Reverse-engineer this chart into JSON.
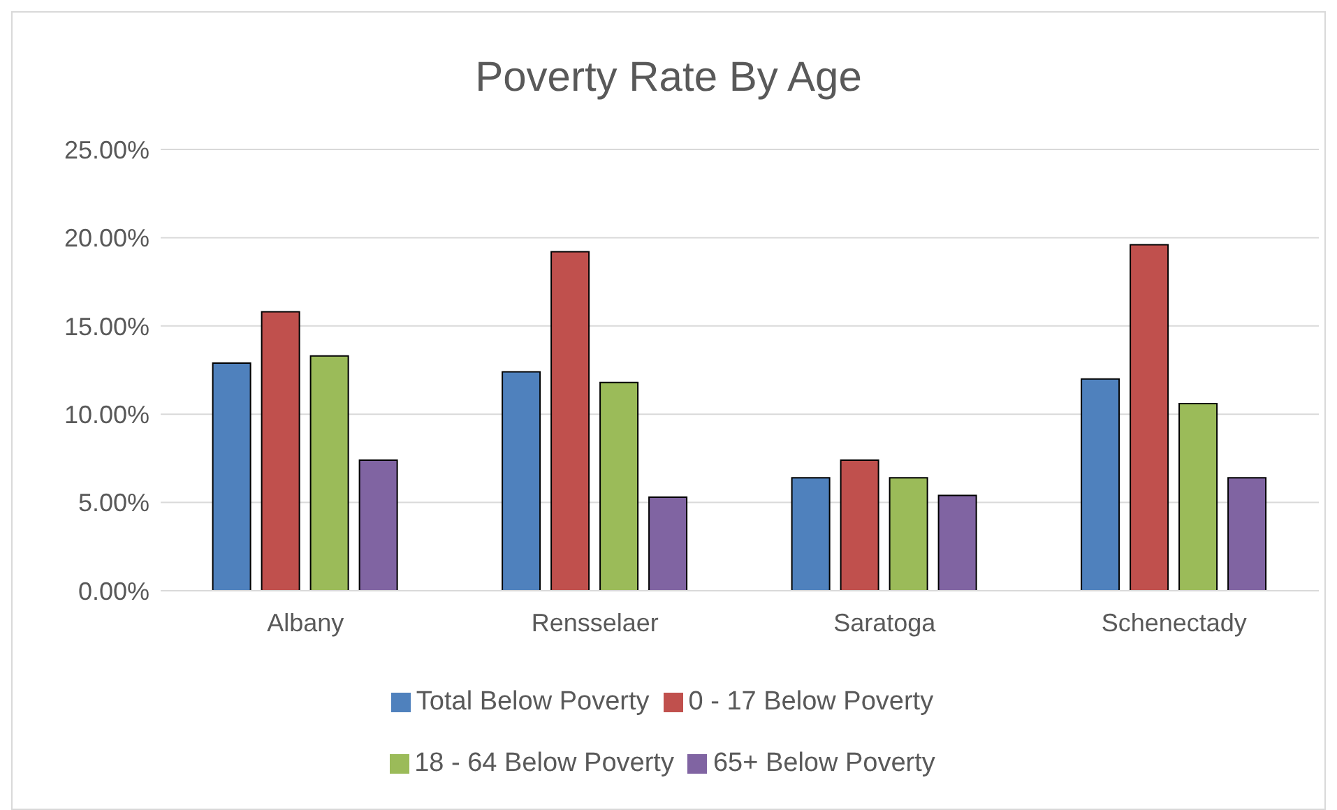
{
  "chart_data": {
    "type": "bar",
    "title": "Poverty Rate By Age",
    "categories": [
      "Albany",
      "Rensselaer",
      "Saratoga",
      "Schenectady"
    ],
    "series": [
      {
        "name": "Total Below Poverty",
        "color": "#4f81bd",
        "values": [
          12.9,
          12.4,
          6.4,
          12.0
        ]
      },
      {
        "name": "0 - 17 Below Poverty",
        "color": "#c0504d",
        "values": [
          15.8,
          19.2,
          7.4,
          19.6
        ]
      },
      {
        "name": "18 - 64 Below Poverty",
        "color": "#9bbb59",
        "values": [
          13.3,
          11.8,
          6.4,
          10.6
        ]
      },
      {
        "name": "65+ Below Poverty",
        "color": "#8064a2",
        "values": [
          7.4,
          5.3,
          5.4,
          6.4
        ]
      }
    ],
    "ylim": [
      0,
      25
    ],
    "yticks": [
      {
        "value": 0,
        "label": "0.00%"
      },
      {
        "value": 5,
        "label": "5.00%"
      },
      {
        "value": 10,
        "label": "10.00%"
      },
      {
        "value": 15,
        "label": "15.00%"
      },
      {
        "value": 20,
        "label": "20.00%"
      },
      {
        "value": 25,
        "label": "25.00%"
      }
    ],
    "grid": "y",
    "legend": "bottom"
  }
}
